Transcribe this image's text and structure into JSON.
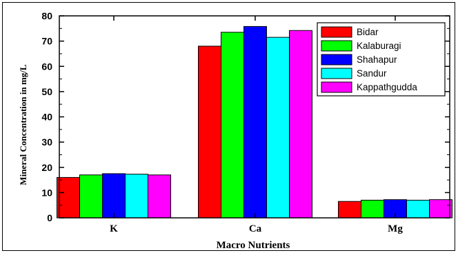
{
  "chart_data": {
    "type": "bar",
    "categories": [
      "K",
      "Ca",
      "Mg"
    ],
    "series": [
      {
        "name": "Bidar",
        "color": "#ff0000",
        "values": [
          16,
          68,
          6.5
        ]
      },
      {
        "name": "Kalaburagi",
        "color": "#00ff00",
        "values": [
          17,
          73.5,
          7
        ]
      },
      {
        "name": "Shahapur",
        "color": "#0000ff",
        "values": [
          17.5,
          75.8,
          7.2
        ]
      },
      {
        "name": "Sandur",
        "color": "#00ffff",
        "values": [
          17.3,
          71.5,
          7
        ]
      },
      {
        "name": "Kappathgudda",
        "color": "#ff00ff",
        "values": [
          17,
          74.2,
          7.2
        ]
      }
    ],
    "xlabel": "Macro Nutrients",
    "ylabel": "Mineral Concentration in mg/L",
    "ylim": [
      0,
      80
    ],
    "yticks": [
      "0",
      "10",
      "20",
      "30",
      "40",
      "50",
      "60",
      "70",
      "80"
    ],
    "legend_position": "top-right",
    "grid": false
  }
}
